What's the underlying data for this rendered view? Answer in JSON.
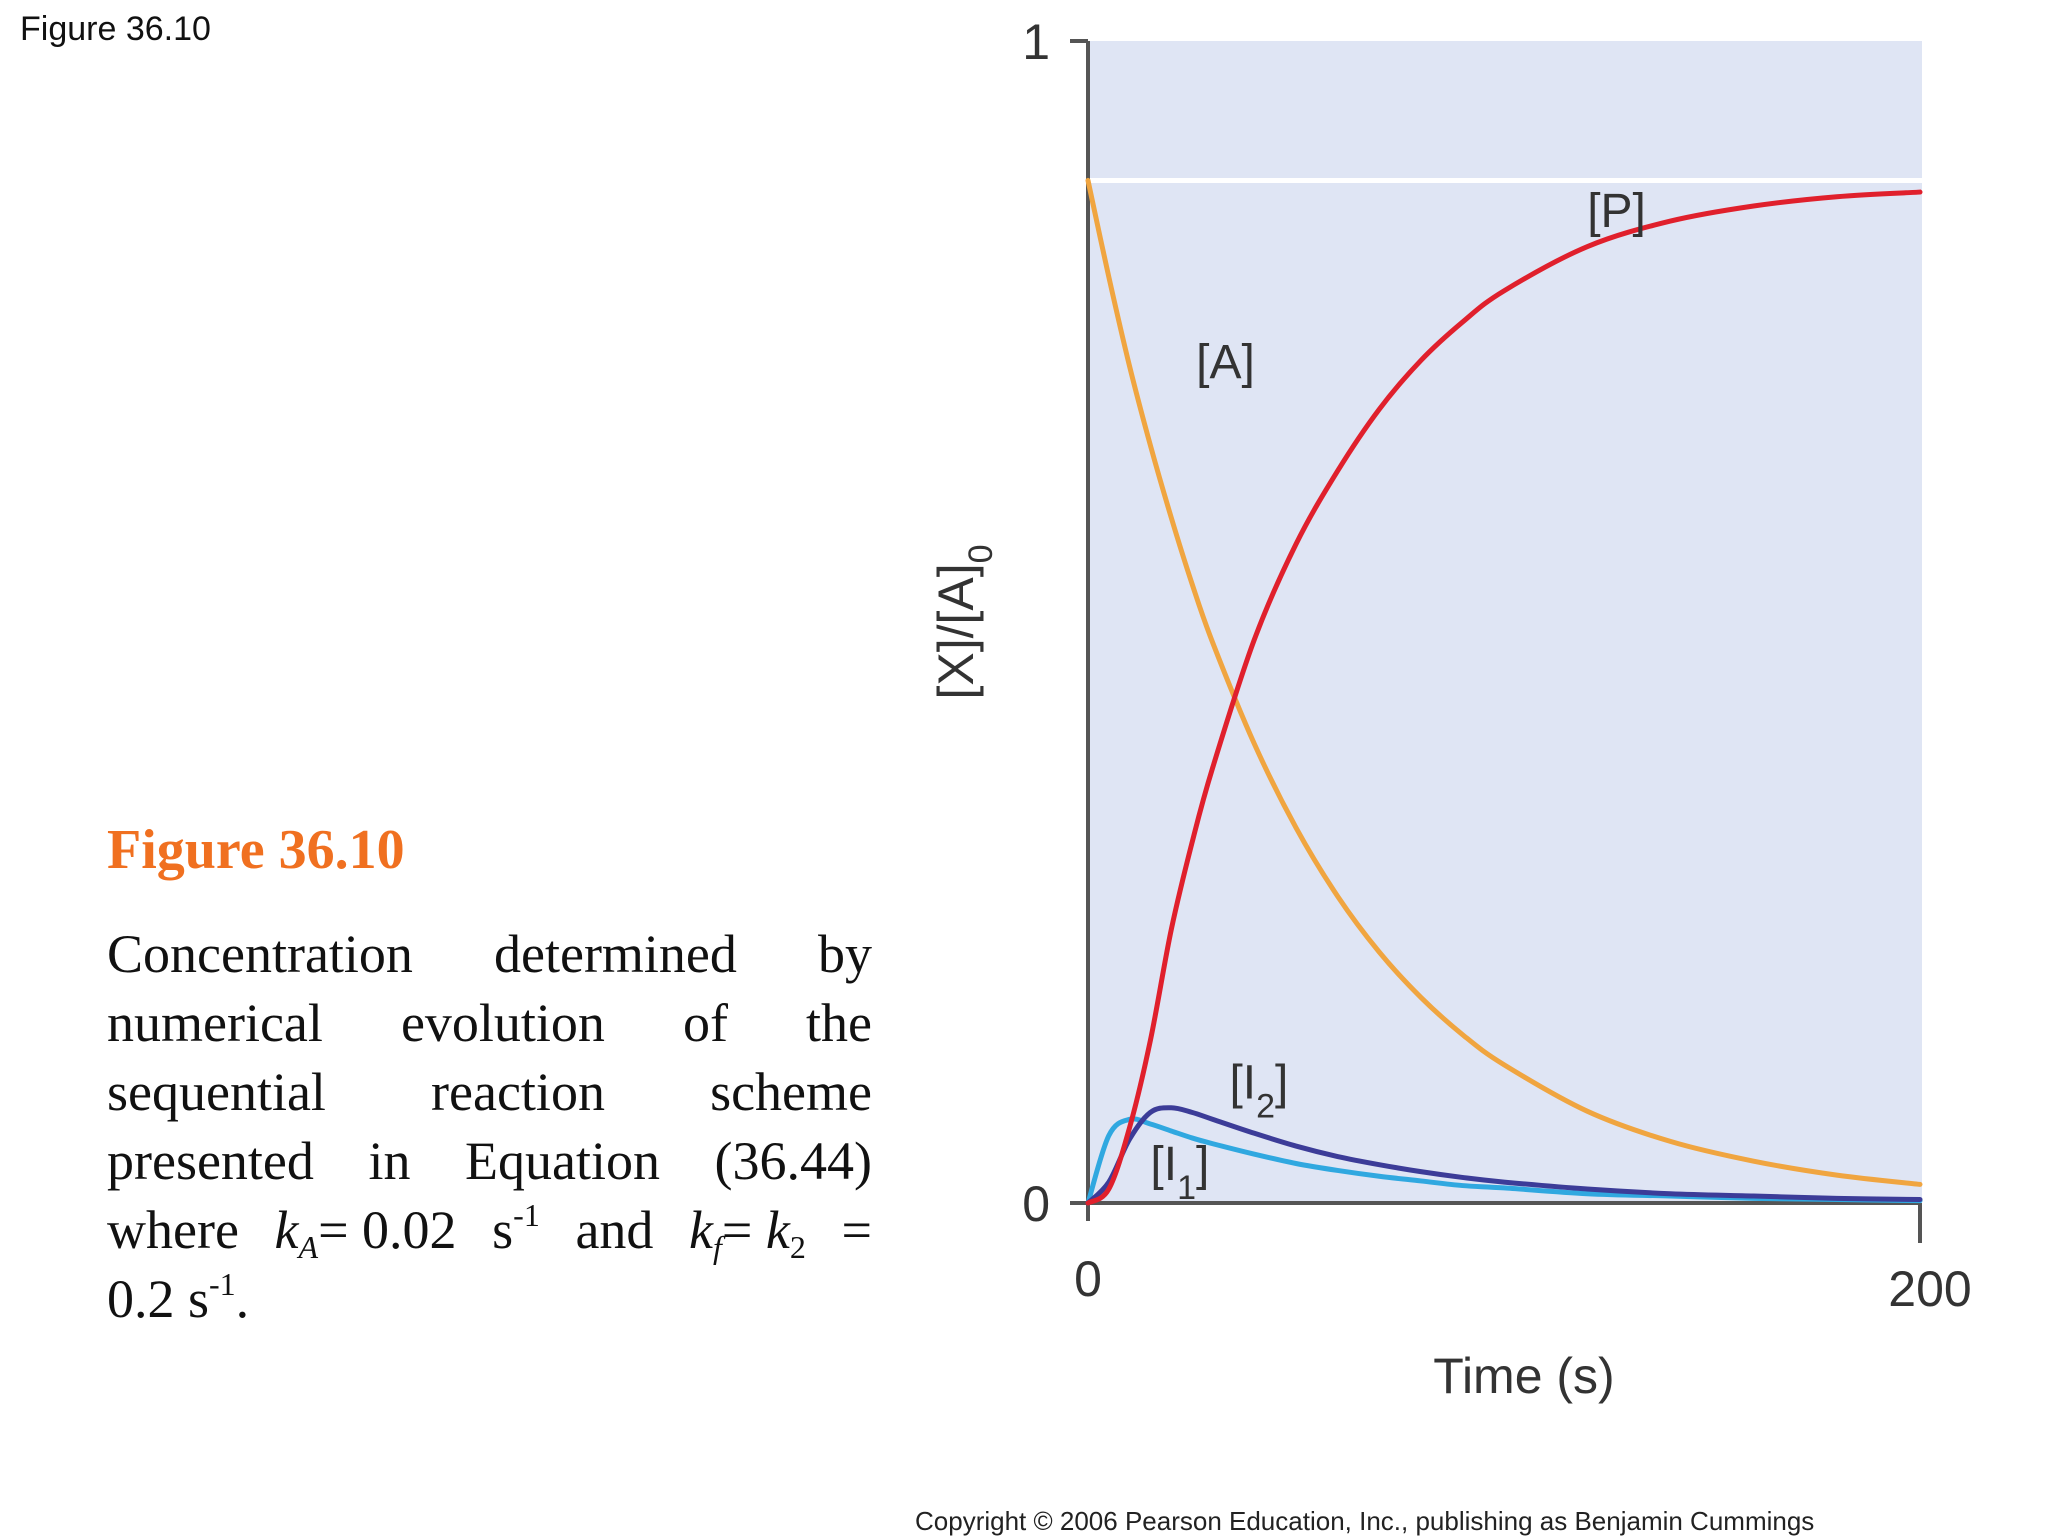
{
  "header": {
    "figure_ref": "Figure 36.10"
  },
  "caption": {
    "title": "Figure 36.10",
    "line1": [
      "Concentration",
      "determined",
      "by"
    ],
    "line2": [
      "numerical",
      "evolution",
      "of",
      "the"
    ],
    "line3": [
      "sequential",
      "reaction",
      "scheme"
    ],
    "line4": [
      "presented",
      "in",
      "Equation",
      "(36.44)"
    ],
    "line5": {
      "w1": "where",
      "kA_k": "k",
      "kA_sub": "A",
      "kA_eq": "= 0.02",
      "kA_unit": "s",
      "exp1": "-1",
      "and": "and",
      "kf_k": "k",
      "kf_sub": "f",
      "kf_eq": "= ",
      "k2_k": "k",
      "k2_sub": "2",
      "k2_eq": "="
    },
    "line6": {
      "val": "0.2 s",
      "exp": "-1",
      "end": "."
    }
  },
  "copyright": "Copyright © 2006 Pearson Education, Inc., publishing as Benjamin Cummings",
  "colors": {
    "plot_bg": "#dfe5f4",
    "axis": "#555555",
    "A": "#f0a540",
    "P": "#e0202c",
    "I1": "#30a8e0",
    "I2": "#3c3c98",
    "reference_line": "#ffffff"
  },
  "chart_data": {
    "type": "line",
    "xlabel": "Time (s)",
    "ylabel": "[X]/[A]",
    "ylabel_sub": "0",
    "xlim": [
      0,
      200
    ],
    "ylim": [
      0,
      1
    ],
    "x_ticks": [
      "0",
      "200"
    ],
    "y_ticks": [
      "0",
      "1"
    ],
    "reference_line_y": 0.88,
    "x": [
      0,
      5,
      10,
      15,
      20,
      25,
      30,
      40,
      50,
      60,
      70,
      80,
      90,
      100,
      120,
      140,
      160,
      180,
      200
    ],
    "series": [
      {
        "name": "[A]",
        "label": "A",
        "values": [
          0.88,
          0.797,
          0.72,
          0.652,
          0.59,
          0.533,
          0.482,
          0.395,
          0.323,
          0.264,
          0.216,
          0.177,
          0.145,
          0.119,
          0.079,
          0.053,
          0.036,
          0.024,
          0.016
        ]
      },
      {
        "name": "[I1]",
        "label": "I1",
        "values": [
          0,
          0.058,
          0.072,
          0.068,
          0.062,
          0.056,
          0.051,
          0.042,
          0.034,
          0.028,
          0.023,
          0.019,
          0.015,
          0.013,
          0.008,
          0.006,
          0.004,
          0.003,
          0.002
        ]
      },
      {
        "name": "[I2]",
        "label": "I2",
        "values": [
          0,
          0.018,
          0.055,
          0.078,
          0.082,
          0.078,
          0.072,
          0.06,
          0.049,
          0.04,
          0.033,
          0.027,
          0.022,
          0.018,
          0.012,
          0.008,
          0.006,
          0.004,
          0.003
        ]
      },
      {
        "name": "[P]",
        "label": "P",
        "values": [
          0,
          0.012,
          0.065,
          0.14,
          0.235,
          0.31,
          0.375,
          0.485,
          0.567,
          0.63,
          0.683,
          0.725,
          0.758,
          0.785,
          0.823,
          0.845,
          0.858,
          0.866,
          0.87
        ]
      }
    ],
    "annotations": [
      {
        "text": "[A]",
        "x": 26,
        "y": 0.71
      },
      {
        "text": "[P]",
        "x": 120,
        "y": 0.84
      },
      {
        "text": "[I",
        "sub": "2",
        "x": 34,
        "y": 0.09
      },
      {
        "text": "[I",
        "sub": "1",
        "x": 15,
        "y": 0.02
      }
    ]
  }
}
